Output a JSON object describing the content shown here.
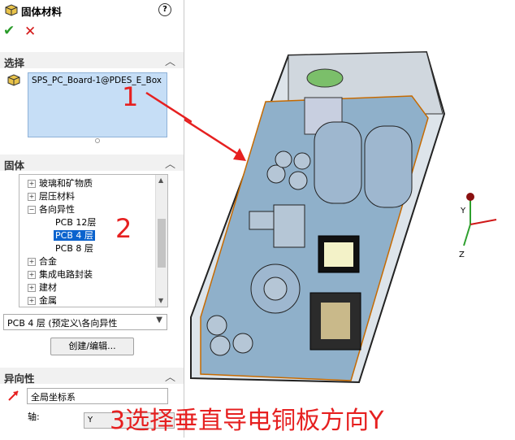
{
  "header": {
    "title": "固体材料",
    "help": "?"
  },
  "actions": {
    "ok": "✔",
    "cancel": "✕"
  },
  "selection": {
    "section_label": "选择",
    "selected_body": "SPS_PC_Board-1@PDES_E_Box"
  },
  "solid": {
    "section_label": "固体",
    "tree": [
      {
        "label": "玻璃和矿物质",
        "toggle": "+"
      },
      {
        "label": "层压材料",
        "toggle": "+"
      },
      {
        "label": "各向异性",
        "toggle": "−"
      },
      {
        "label": "PCB 12层",
        "toggle": ""
      },
      {
        "label": "PCB 4 层",
        "toggle": "",
        "selected": true
      },
      {
        "label": "PCB 8 层",
        "toggle": ""
      },
      {
        "label": "合金",
        "toggle": "+"
      },
      {
        "label": "集成电路封装",
        "toggle": "+"
      },
      {
        "label": "建材",
        "toggle": "+"
      },
      {
        "label": "金属",
        "toggle": "+"
      }
    ],
    "combo_value": "PCB 4 层 (预定义\\各向异性",
    "create_button": "创建/编辑..."
  },
  "anisotropy": {
    "section_label": "异向性",
    "coord_system": "全局坐标系",
    "axis_label": "轴:",
    "axis_value": "Y"
  },
  "annotations": {
    "n1": "1",
    "n2": "2",
    "n3": "3选择垂直导电铜板方向Y"
  },
  "triad": {
    "y": "Y",
    "z": "Z"
  },
  "colors": {
    "accent": "#e62020",
    "selection": "#0b63ce",
    "ok": "#2a9b2a"
  }
}
